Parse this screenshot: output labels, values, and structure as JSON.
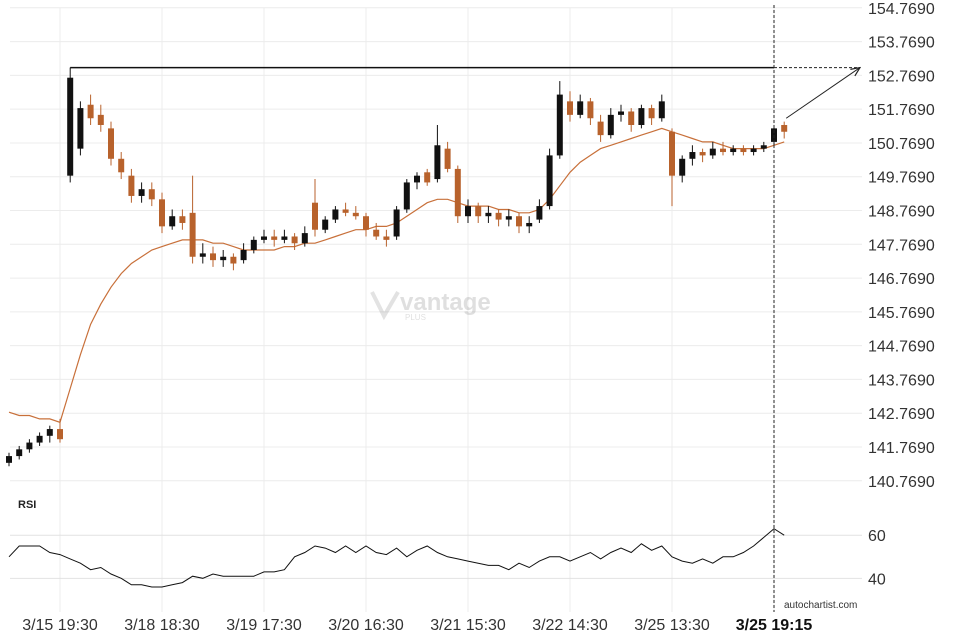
{
  "chart_data": {
    "type": "candlestick",
    "up_color": "#111111",
    "down_color": "#b8622c",
    "ma_color": "#c8703a",
    "ylim": [
      140.2,
      155.0
    ],
    "yticks": [
      {
        "value": 154.769,
        "label": "154.7690"
      },
      {
        "value": 153.769,
        "label": "153.7690"
      },
      {
        "value": 152.769,
        "label": "152.7690"
      },
      {
        "value": 151.769,
        "label": "151.7690"
      },
      {
        "value": 150.769,
        "label": "150.7690"
      },
      {
        "value": 149.769,
        "label": "149.7690"
      },
      {
        "value": 148.769,
        "label": "148.7690"
      },
      {
        "value": 147.769,
        "label": "147.7690"
      },
      {
        "value": 146.769,
        "label": "146.7690"
      },
      {
        "value": 145.769,
        "label": "145.7690"
      },
      {
        "value": 144.769,
        "label": "144.7690"
      },
      {
        "value": 143.769,
        "label": "143.7690"
      },
      {
        "value": 142.769,
        "label": "142.7690"
      },
      {
        "value": 141.769,
        "label": "141.7690"
      },
      {
        "value": 140.769,
        "label": "140.7690"
      }
    ],
    "xticks": [
      {
        "value": 5,
        "label": "3/15 19:30"
      },
      {
        "value": 15,
        "label": "3/18 18:30"
      },
      {
        "value": 25,
        "label": "3/19 17:30"
      },
      {
        "value": 35,
        "label": "3/20 16:30"
      },
      {
        "value": 45,
        "label": "3/21 15:30"
      },
      {
        "value": 55,
        "label": "3/22 14:30"
      },
      {
        "value": 65,
        "label": "3/25 13:30"
      },
      {
        "value": 75,
        "label": "3/25 19:15"
      }
    ],
    "highlight_last_tick": true,
    "grid": true,
    "candles": [
      [
        141.3,
        141.6,
        141.2,
        141.5
      ],
      [
        141.5,
        141.8,
        141.4,
        141.7
      ],
      [
        141.7,
        142.0,
        141.6,
        141.9
      ],
      [
        141.9,
        142.2,
        141.8,
        142.1
      ],
      [
        142.1,
        142.4,
        141.9,
        142.3
      ],
      [
        142.3,
        142.6,
        141.9,
        142.0
      ],
      [
        149.8,
        153.0,
        149.6,
        152.7
      ],
      [
        150.6,
        152.0,
        150.4,
        151.8
      ],
      [
        151.9,
        152.2,
        151.3,
        151.5
      ],
      [
        151.6,
        151.9,
        151.1,
        151.3
      ],
      [
        151.2,
        151.4,
        150.1,
        150.3
      ],
      [
        150.3,
        150.5,
        149.7,
        149.9
      ],
      [
        149.8,
        150.0,
        149.0,
        149.2
      ],
      [
        149.2,
        149.6,
        149.0,
        149.4
      ],
      [
        149.4,
        149.6,
        148.9,
        149.1
      ],
      [
        149.1,
        149.3,
        148.1,
        148.3
      ],
      [
        148.3,
        148.8,
        148.2,
        148.6
      ],
      [
        148.6,
        148.8,
        148.2,
        148.4
      ],
      [
        148.7,
        149.8,
        147.2,
        147.4
      ],
      [
        147.4,
        147.8,
        147.2,
        147.5
      ],
      [
        147.5,
        147.7,
        147.1,
        147.3
      ],
      [
        147.3,
        147.6,
        147.1,
        147.4
      ],
      [
        147.4,
        147.5,
        147.0,
        147.2
      ],
      [
        147.3,
        147.8,
        147.2,
        147.6
      ],
      [
        147.6,
        148.0,
        147.5,
        147.9
      ],
      [
        147.9,
        148.2,
        147.8,
        148.0
      ],
      [
        148.0,
        148.2,
        147.7,
        147.9
      ],
      [
        147.9,
        148.2,
        147.8,
        148.0
      ],
      [
        148.0,
        148.1,
        147.6,
        147.8
      ],
      [
        147.8,
        148.3,
        147.7,
        148.1
      ],
      [
        149.0,
        149.7,
        148.0,
        148.2
      ],
      [
        148.2,
        148.6,
        148.1,
        148.5
      ],
      [
        148.5,
        148.9,
        148.4,
        148.8
      ],
      [
        148.8,
        149.0,
        148.6,
        148.7
      ],
      [
        148.7,
        148.9,
        148.5,
        148.6
      ],
      [
        148.6,
        148.7,
        148.0,
        148.2
      ],
      [
        148.2,
        148.4,
        147.9,
        148.0
      ],
      [
        148.0,
        148.2,
        147.7,
        147.9
      ],
      [
        148.0,
        148.9,
        147.9,
        148.8
      ],
      [
        148.8,
        149.7,
        148.7,
        149.6
      ],
      [
        149.6,
        149.9,
        149.4,
        149.8
      ],
      [
        149.9,
        150.0,
        149.5,
        149.6
      ],
      [
        149.7,
        151.3,
        149.6,
        150.7
      ],
      [
        150.6,
        150.8,
        149.9,
        150.0
      ],
      [
        150.0,
        150.1,
        148.4,
        148.6
      ],
      [
        148.6,
        149.1,
        148.4,
        148.9
      ],
      [
        148.9,
        149.0,
        148.4,
        148.6
      ],
      [
        148.6,
        148.9,
        148.4,
        148.7
      ],
      [
        148.7,
        148.8,
        148.3,
        148.5
      ],
      [
        148.5,
        148.8,
        148.3,
        148.6
      ],
      [
        148.6,
        148.7,
        148.1,
        148.3
      ],
      [
        148.3,
        148.6,
        148.1,
        148.4
      ],
      [
        148.5,
        149.1,
        148.4,
        148.9
      ],
      [
        148.9,
        150.6,
        148.8,
        150.4
      ],
      [
        150.4,
        152.6,
        150.3,
        152.2
      ],
      [
        152.0,
        152.3,
        151.4,
        151.6
      ],
      [
        151.6,
        152.2,
        151.5,
        152.0
      ],
      [
        152.0,
        152.1,
        151.3,
        151.5
      ],
      [
        151.4,
        151.6,
        150.8,
        151.0
      ],
      [
        151.0,
        151.8,
        150.9,
        151.6
      ],
      [
        151.6,
        151.9,
        151.4,
        151.7
      ],
      [
        151.7,
        151.8,
        151.1,
        151.3
      ],
      [
        151.3,
        151.9,
        151.2,
        151.8
      ],
      [
        151.8,
        151.9,
        151.3,
        151.5
      ],
      [
        151.5,
        152.2,
        151.4,
        152.0
      ],
      [
        151.1,
        151.2,
        148.9,
        149.8
      ],
      [
        149.8,
        150.4,
        149.6,
        150.3
      ],
      [
        150.3,
        150.7,
        150.1,
        150.5
      ],
      [
        150.5,
        150.6,
        150.2,
        150.4
      ],
      [
        150.4,
        150.8,
        150.3,
        150.6
      ],
      [
        150.6,
        150.8,
        150.4,
        150.5
      ],
      [
        150.5,
        150.7,
        150.4,
        150.6
      ],
      [
        150.6,
        150.7,
        150.4,
        150.5
      ],
      [
        150.5,
        150.7,
        150.4,
        150.6
      ],
      [
        150.6,
        150.8,
        150.5,
        150.7
      ],
      [
        150.8,
        151.3,
        150.7,
        151.2
      ],
      [
        151.3,
        151.4,
        150.9,
        151.1
      ]
    ],
    "moving_average": [
      142.8,
      142.7,
      142.7,
      142.6,
      142.6,
      142.5,
      143.5,
      144.5,
      145.4,
      146.0,
      146.5,
      146.9,
      147.2,
      147.4,
      147.6,
      147.7,
      147.8,
      147.9,
      147.9,
      147.9,
      147.8,
      147.8,
      147.7,
      147.6,
      147.6,
      147.6,
      147.6,
      147.7,
      147.7,
      147.8,
      147.8,
      147.9,
      148.0,
      148.1,
      148.2,
      148.2,
      148.3,
      148.3,
      148.4,
      148.6,
      148.8,
      149.0,
      149.1,
      149.1,
      149.0,
      148.9,
      148.9,
      148.9,
      148.8,
      148.8,
      148.7,
      148.7,
      148.8,
      149.1,
      149.5,
      149.9,
      150.2,
      150.4,
      150.6,
      150.7,
      150.8,
      150.9,
      151.0,
      151.1,
      151.2,
      151.1,
      151.0,
      150.9,
      150.8,
      150.8,
      150.7,
      150.6,
      150.6,
      150.6,
      150.6,
      150.7,
      150.8
    ],
    "resistance": {
      "value": 153.0,
      "start_index": 6
    },
    "forecast": {
      "from": 151.5,
      "to": 153.0
    },
    "rsi": {
      "label": "RSI",
      "ylim": [
        23,
        74
      ],
      "yticks": [
        60,
        40
      ],
      "values": [
        50,
        55,
        55,
        55,
        52,
        51,
        49,
        47,
        44,
        45,
        42,
        40,
        37,
        37,
        36,
        36,
        37,
        38,
        41,
        40,
        42,
        41,
        41,
        41,
        41,
        43,
        43,
        44,
        50,
        52,
        55,
        54,
        52,
        55,
        52,
        55,
        52,
        51,
        54,
        50,
        53,
        55,
        52,
        50,
        49,
        48,
        47,
        46,
        46,
        44,
        47,
        45,
        48,
        50,
        50,
        48,
        50,
        52,
        49,
        52,
        54,
        52,
        56,
        53,
        55,
        50,
        48,
        47,
        49,
        47,
        50,
        50,
        52,
        55,
        59,
        63,
        60
      ]
    },
    "watermark": {
      "brand": "vantage",
      "sub": "PLUS"
    },
    "source": "autochartist.com"
  }
}
